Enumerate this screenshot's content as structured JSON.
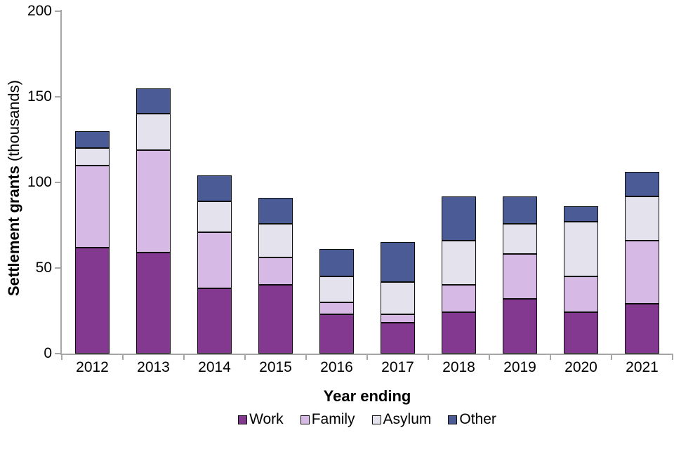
{
  "chart_data": {
    "type": "bar",
    "stacked": true,
    "title": "",
    "xlabel": "Year ending",
    "ylabel_bold": "Settlement grants",
    "ylabel_regular": "(thousands)",
    "ylim": [
      0,
      200
    ],
    "yticks": [
      0,
      50,
      100,
      150,
      200
    ],
    "grid": false,
    "legend_position": "bottom",
    "categories": [
      "2012",
      "2013",
      "2014",
      "2015",
      "2016",
      "2017",
      "2018",
      "2019",
      "2020",
      "2021"
    ],
    "series": [
      {
        "name": "Work",
        "color": "#82398f",
        "values": [
          62,
          59,
          38,
          40,
          23,
          18,
          24,
          32,
          24,
          29
        ]
      },
      {
        "name": "Family",
        "color": "#d7b9e6",
        "values": [
          48,
          60,
          33,
          16,
          7,
          5,
          16,
          26,
          21,
          37
        ]
      },
      {
        "name": "Asylum",
        "color": "#e4e2ec",
        "values": [
          10,
          21,
          18,
          20,
          15,
          19,
          26,
          18,
          32,
          26
        ]
      },
      {
        "name": "Other",
        "color": "#4a5b96",
        "values": [
          10,
          15,
          15,
          15,
          16,
          23,
          26,
          16,
          9,
          14
        ]
      }
    ],
    "totals": [
      130,
      155,
      104,
      91,
      61,
      65,
      92,
      92,
      86,
      106
    ],
    "axis_color": "#a6a6a6",
    "bar_outline_color": "#0d0d0d"
  }
}
